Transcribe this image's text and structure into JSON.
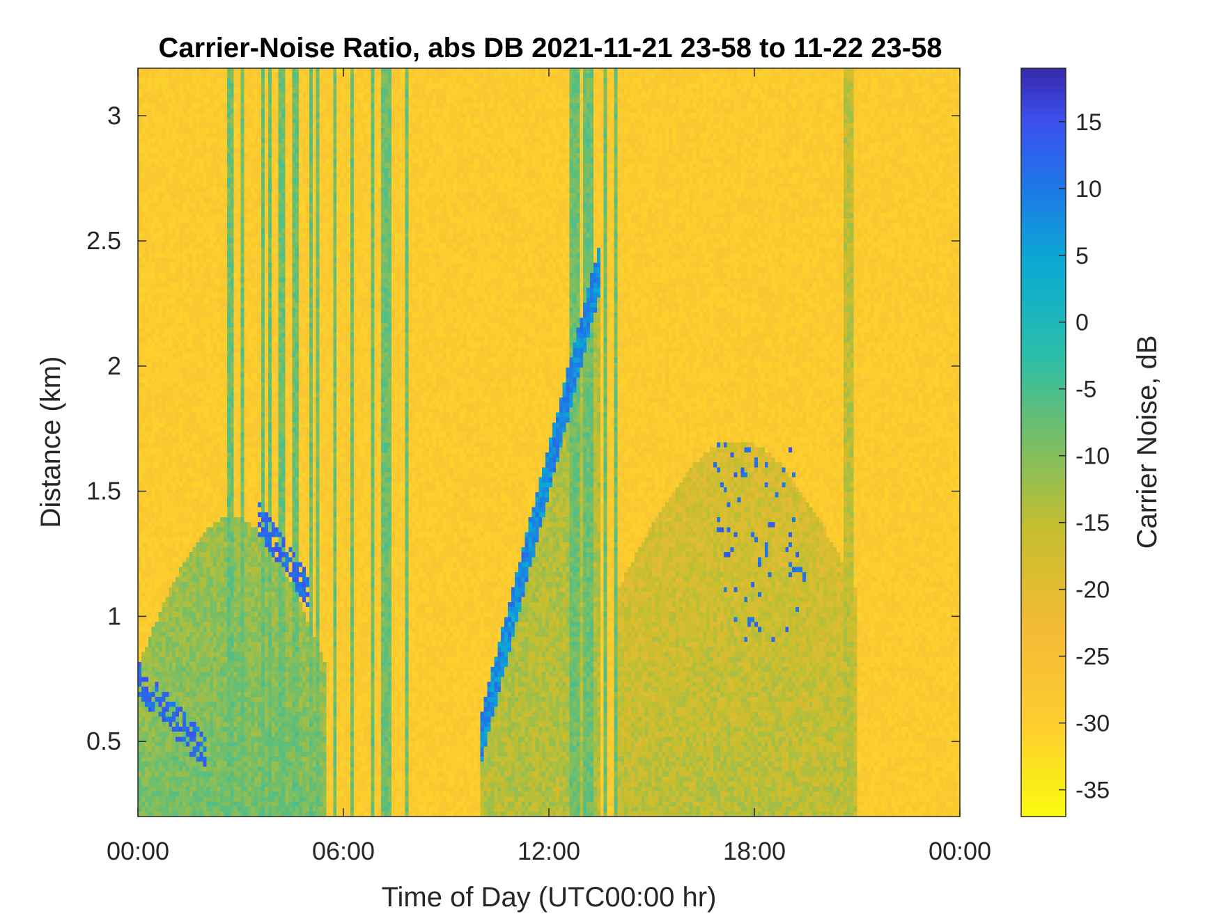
{
  "chart_data": {
    "type": "heatmap",
    "title": "Carrier-Noise Ratio, abs DB 2021-11-21 23-58 to 11-22 23-58",
    "xlabel": "Time of Day (UTC00:00 hr)",
    "ylabel": "Distance (km)",
    "colorbar_label": "Carrier Noise, dB",
    "colormap": "parula",
    "colormap_reversed": true,
    "xlim": [
      0,
      24
    ],
    "ylim": [
      0.2,
      3.19
    ],
    "clim": [
      -37,
      19
    ],
    "x_ticks": [
      {
        "value": 0,
        "label": "00:00"
      },
      {
        "value": 6,
        "label": "06:00"
      },
      {
        "value": 12,
        "label": "12:00"
      },
      {
        "value": 18,
        "label": "18:00"
      },
      {
        "value": 24,
        "label": "00:00"
      }
    ],
    "y_ticks": [
      {
        "value": 0.5,
        "label": "0.5"
      },
      {
        "value": 1,
        "label": "1"
      },
      {
        "value": 1.5,
        "label": "1.5"
      },
      {
        "value": 2,
        "label": "2"
      },
      {
        "value": 2.5,
        "label": "2.5"
      },
      {
        "value": 3,
        "label": "3"
      }
    ],
    "colorbar_ticks": [
      {
        "value": 15,
        "label": "15"
      },
      {
        "value": 10,
        "label": "10"
      },
      {
        "value": 5,
        "label": "5"
      },
      {
        "value": 0,
        "label": "0"
      },
      {
        "value": -5,
        "label": "-5"
      },
      {
        "value": -10,
        "label": "-10"
      },
      {
        "value": -15,
        "label": "-15"
      },
      {
        "value": -20,
        "label": "-20"
      },
      {
        "value": -25,
        "label": "-25"
      },
      {
        "value": -30,
        "label": "-30"
      },
      {
        "value": -35,
        "label": "-35"
      }
    ],
    "background_level": -29,
    "features": [
      {
        "kind": "boundary_layer",
        "x_range": [
          0,
          5.5
        ],
        "top_km": [
          0.8,
          1.4
        ],
        "level": -8
      },
      {
        "kind": "strong_return_band",
        "x_range": [
          0,
          2
        ],
        "y_km": [
          0.45,
          0.75
        ],
        "level": 12
      },
      {
        "kind": "strong_return_band",
        "x_range": [
          3.5,
          5
        ],
        "y_km": [
          1.1,
          1.4
        ],
        "level": 12
      },
      {
        "kind": "rising_layer",
        "x_range": [
          10,
          13.5
        ],
        "y_km": [
          0.5,
          2.4
        ],
        "level": 8
      },
      {
        "kind": "vertical_streaks",
        "x_range": [
          2.5,
          8
        ],
        "y_km": [
          0.2,
          3.19
        ],
        "level": -8
      },
      {
        "kind": "vertical_streaks",
        "x_range": [
          12.5,
          14
        ],
        "y_km": [
          0.2,
          3.19
        ],
        "level": -8
      },
      {
        "kind": "vertical_streaks",
        "x_range": [
          20,
          21
        ],
        "y_km": [
          0.2,
          3.19
        ],
        "level": -15
      },
      {
        "kind": "afternoon_layer",
        "x_range": [
          14,
          21
        ],
        "top_km": [
          1.1,
          1.7
        ],
        "level": -14
      },
      {
        "kind": "strong_return_spots",
        "x_range": [
          16.8,
          19.5
        ],
        "y_km": [
          0.9,
          1.7
        ],
        "level": 12
      }
    ]
  }
}
